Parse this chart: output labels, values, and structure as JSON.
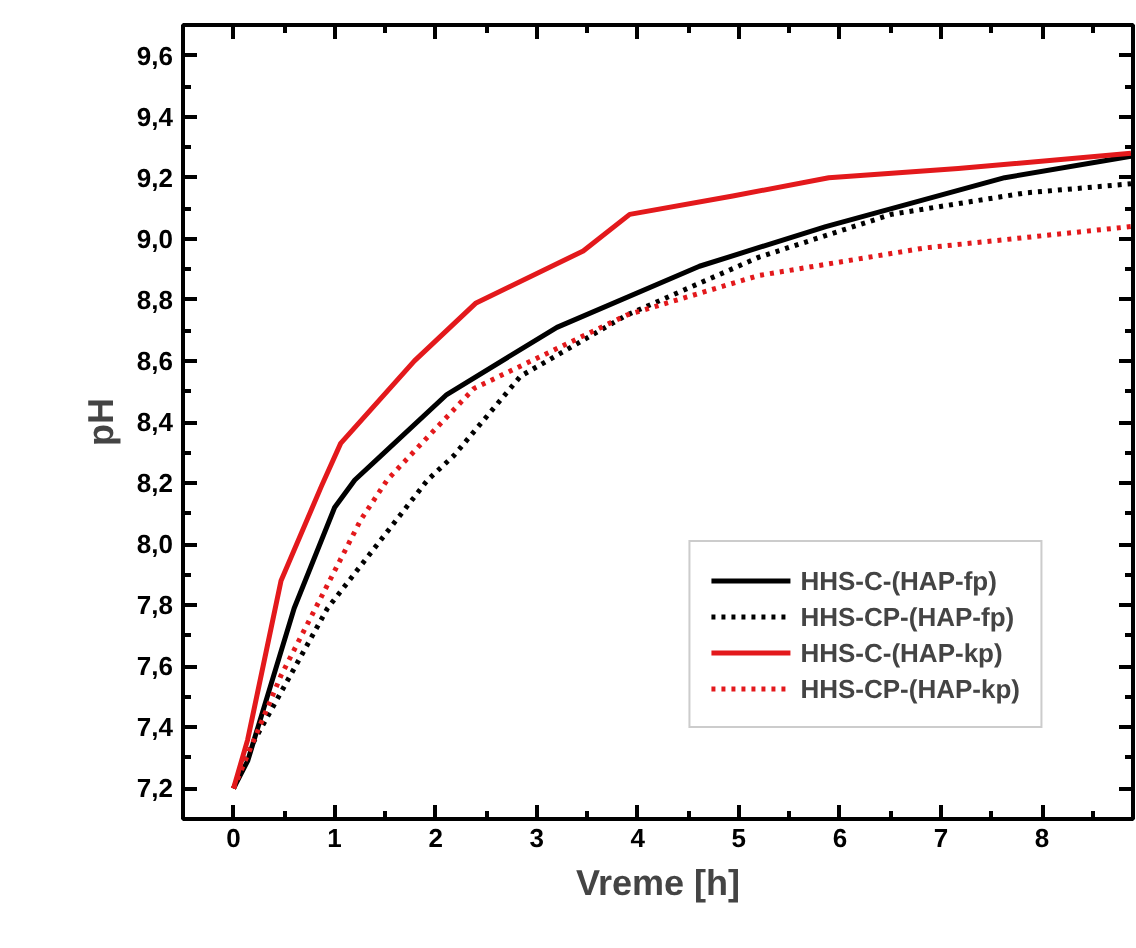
{
  "chart_data": {
    "type": "line",
    "xlabel": "Vreme [h]",
    "ylabel": "pH",
    "xlim": [
      -0.5,
      8.9
    ],
    "ylim": [
      7.1,
      9.7
    ],
    "xticks": [
      0,
      1,
      2,
      3,
      4,
      5,
      6,
      7,
      8
    ],
    "yticks": [
      {
        "value": 7.2,
        "label": "7,2"
      },
      {
        "value": 7.4,
        "label": "7,4"
      },
      {
        "value": 7.6,
        "label": "7,6"
      },
      {
        "value": 7.8,
        "label": "7,8"
      },
      {
        "value": 8.0,
        "label": "8,0"
      },
      {
        "value": 8.2,
        "label": "8,2"
      },
      {
        "value": 8.4,
        "label": "8,4"
      },
      {
        "value": 8.6,
        "label": "8,6"
      },
      {
        "value": 8.8,
        "label": "8,8"
      },
      {
        "value": 9.0,
        "label": "9,0"
      },
      {
        "value": 9.2,
        "label": "9,2"
      },
      {
        "value": 9.4,
        "label": "9,4"
      },
      {
        "value": 9.6,
        "label": "9,6"
      }
    ],
    "grid": false,
    "legend": "bottom right",
    "marker": "none",
    "series": [
      {
        "name": "HHS-C-(HAP-fp)",
        "color": "#000000",
        "line_style": "solid",
        "x": [
          0,
          0.14,
          0.6,
          1.0,
          1.2,
          1.46,
          2.11,
          3.2,
          4.61,
          5.86,
          7.63,
          8.88
        ],
        "values": [
          7.2,
          7.29,
          7.79,
          8.12,
          8.21,
          8.29,
          8.49,
          8.71,
          8.91,
          9.04,
          9.2,
          9.27
        ]
      },
      {
        "name": "HHS-CP-(HAP-fp)",
        "color": "#000000",
        "line_style": "dotted",
        "x": [
          0,
          0.21,
          0.93,
          1.92,
          2.18,
          2.84,
          3.89,
          5.2,
          6.51,
          7.83,
          8.88
        ],
        "values": [
          7.2,
          7.36,
          7.79,
          8.21,
          8.29,
          8.55,
          8.75,
          8.94,
          9.08,
          9.15,
          9.18
        ]
      },
      {
        "name": "HHS-C-(HAP-kp)",
        "color": "#e3191c",
        "line_style": "solid",
        "x": [
          0,
          0.14,
          0.47,
          0.87,
          1.06,
          1.79,
          2.4,
          3.46,
          3.92,
          4.94,
          5.89,
          7.17,
          8.88
        ],
        "values": [
          7.2,
          7.36,
          7.88,
          8.19,
          8.33,
          8.6,
          8.79,
          8.96,
          9.08,
          9.14,
          9.2,
          9.23,
          9.28
        ]
      },
      {
        "name": "HHS-CP-(HAP-kp)",
        "color": "#e3191c",
        "line_style": "dotted",
        "x": [
          0,
          0.47,
          1.26,
          1.52,
          1.89,
          2.38,
          3.89,
          5.2,
          6.84,
          8.88
        ],
        "values": [
          7.2,
          7.57,
          8.08,
          8.21,
          8.34,
          8.51,
          8.75,
          8.88,
          8.97,
          9.04
        ]
      }
    ]
  }
}
